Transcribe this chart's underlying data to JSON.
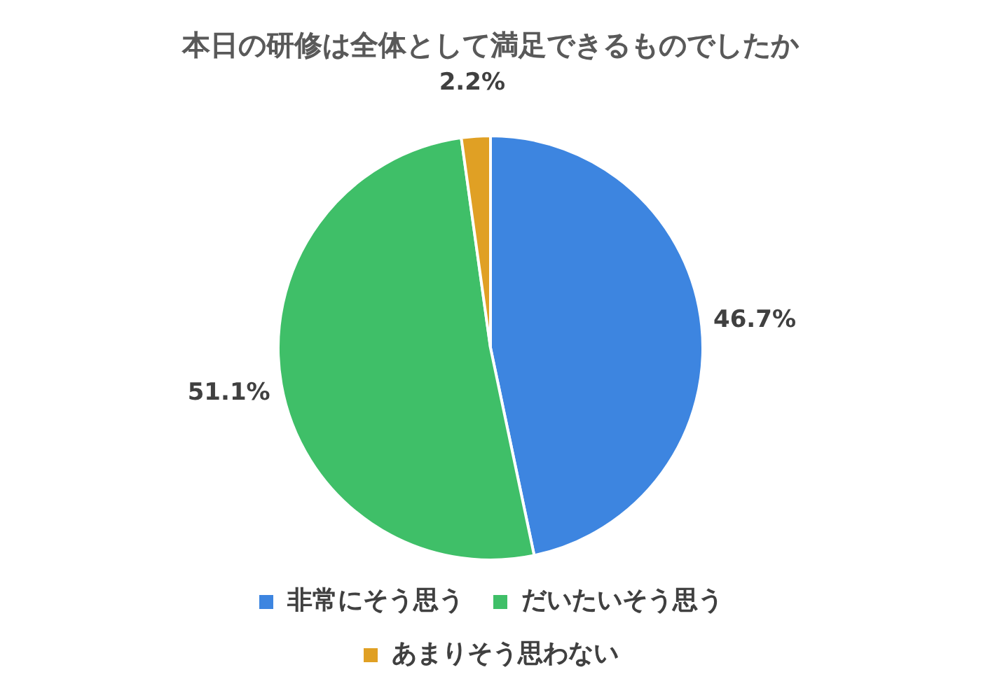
{
  "chart_data": {
    "type": "pie",
    "title": "本日の研修は全体として満足できるものでしたか",
    "categories": [
      "非常にそう思う",
      "だいたいそう思う",
      "あまりそう思わない"
    ],
    "values": [
      46.7,
      51.1,
      2.2
    ],
    "colors": [
      "#3d85e0",
      "#3fbf68",
      "#e0a024"
    ],
    "value_labels": [
      "46.7%",
      "51.1%",
      "2.2%"
    ],
    "legend": "bottom"
  }
}
